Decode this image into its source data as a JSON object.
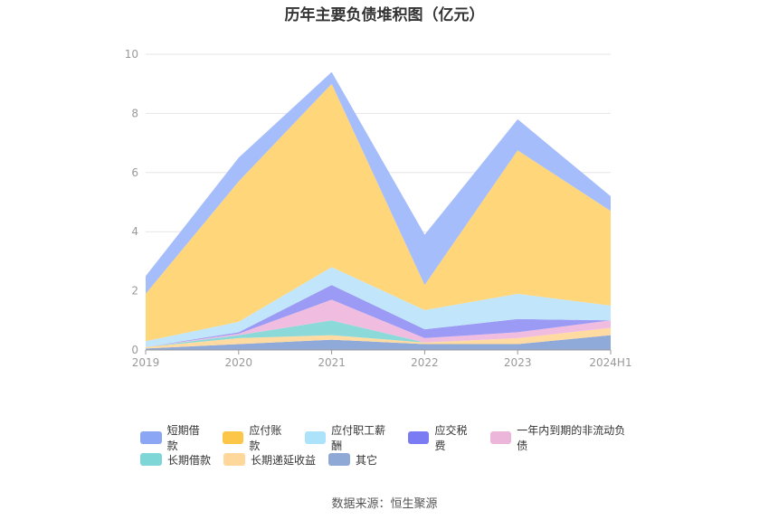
{
  "chart_data": {
    "type": "area",
    "stacked": true,
    "title": "历年主要负债堆积图（亿元）",
    "x": [
      "2019",
      "2020",
      "2021",
      "2022",
      "2023",
      "2024H1"
    ],
    "ylim": [
      0,
      10
    ],
    "yticks": [
      0,
      2,
      4,
      6,
      8,
      10
    ],
    "grid": true,
    "legend_position": "bottom",
    "series": [
      {
        "name": "其它",
        "color": "#8fa9d8",
        "values": [
          0.05,
          0.2,
          0.35,
          0.2,
          0.2,
          0.5
        ]
      },
      {
        "name": "长期递延收益",
        "color": "#ffdba1",
        "values": [
          0.05,
          0.2,
          0.15,
          0.05,
          0.2,
          0.25
        ]
      },
      {
        "name": "长期借款",
        "color": "#8bd9d9",
        "values": [
          0.0,
          0.1,
          0.5,
          0.0,
          0.0,
          0.0
        ]
      },
      {
        "name": "一年内到期的非流动负债",
        "color": "#f0bde0",
        "values": [
          0.0,
          0.05,
          0.7,
          0.15,
          0.2,
          0.25
        ]
      },
      {
        "name": "应交税费",
        "color": "#9b9bf5",
        "values": [
          0.0,
          0.05,
          0.5,
          0.3,
          0.45,
          0.0
        ]
      },
      {
        "name": "应付职工薪酬",
        "color": "#c1e6fb",
        "values": [
          0.2,
          0.35,
          0.6,
          0.65,
          0.85,
          0.5
        ]
      },
      {
        "name": "应付账款",
        "color": "#ffd67a",
        "values": [
          1.6,
          4.75,
          6.2,
          0.85,
          4.85,
          3.2
        ]
      },
      {
        "name": "短期借款",
        "color": "#a6bdfb",
        "values": [
          0.6,
          0.8,
          0.4,
          1.7,
          1.05,
          0.5
        ]
      }
    ],
    "legend": [
      {
        "name": "短期借款",
        "color": "#8aa6f5"
      },
      {
        "name": "应付账款",
        "color": "#fcc748"
      },
      {
        "name": "应付职工薪酬",
        "color": "#ace2fa"
      },
      {
        "name": "应交税费",
        "color": "#7b7bf3"
      },
      {
        "name": "一年内到期的非流动负债",
        "color": "#ecb6da"
      },
      {
        "name": "长期借款",
        "color": "#7fd6d6"
      },
      {
        "name": "长期递延收益",
        "color": "#fed79b"
      },
      {
        "name": "其它",
        "color": "#8fa9d6"
      }
    ]
  },
  "source": "数据来源：恒生聚源"
}
